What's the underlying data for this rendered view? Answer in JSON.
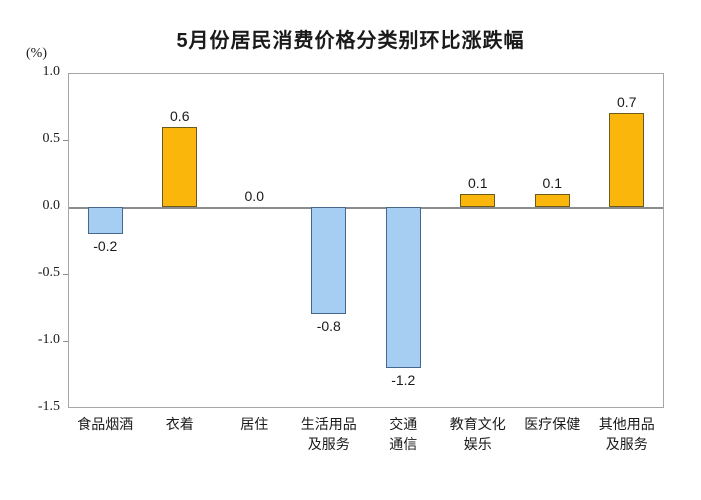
{
  "chart_data": {
    "type": "bar",
    "title": "5月份居民消费价格分类别环比涨跌幅",
    "unit": "(%)",
    "categories": [
      "食品烟酒",
      "衣着",
      "居住",
      "生活用品及服务",
      "交通通信",
      "教育文化娱乐",
      "医疗保健",
      "其他用品及服务"
    ],
    "category_lines": [
      [
        "食品烟酒"
      ],
      [
        "衣着"
      ],
      [
        "居住"
      ],
      [
        "生活用品",
        "及服务"
      ],
      [
        "交通",
        "通信"
      ],
      [
        "教育文化",
        "娱乐"
      ],
      [
        "医疗保健"
      ],
      [
        "其他用品",
        "及服务"
      ]
    ],
    "values": [
      -0.2,
      0.6,
      0.0,
      -0.8,
      -1.2,
      0.1,
      0.1,
      0.7
    ],
    "value_labels": [
      "-0.2",
      "0.6",
      "0.0",
      "-0.8",
      "-1.2",
      "0.1",
      "0.1",
      "0.7"
    ],
    "xlabel": "",
    "ylabel": "(%)",
    "ylim": [
      -1.5,
      1.0
    ],
    "yticks": [
      1.0,
      0.5,
      0.0,
      -0.5,
      -1.0,
      -1.5
    ],
    "ytick_labels": [
      "1.0",
      "0.5",
      "0.0",
      "-0.5",
      "-1.0",
      "-1.5"
    ],
    "grid": false,
    "legend": "none",
    "colors": {
      "positive_fill": "#fbb60c",
      "positive_border": "#6b5a1e",
      "negative_fill": "#a5cef2",
      "negative_border": "#45678a",
      "zero_line": "#8c8c8c",
      "plot_border": "#a6a6a6",
      "text": "#1a1a1a"
    }
  }
}
